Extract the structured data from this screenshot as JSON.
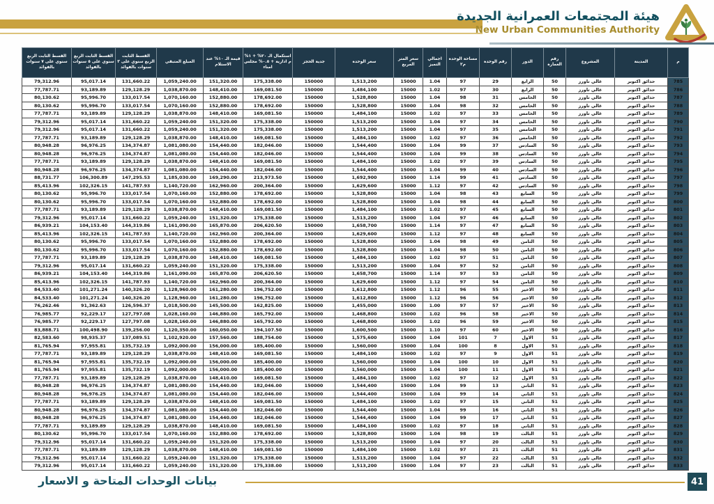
{
  "header": {
    "title_ar": "هيئة المجتمعات العمرانية الجديدة",
    "title_en": "New Urban Communities Authority",
    "logo_icon": "pyramid-plant-logo"
  },
  "footer": {
    "title": "بيانات الوحدات المتاحة و الاسعار",
    "page_number": "41"
  },
  "colors": {
    "gold": "#c9a23f",
    "header_teal": "#20394a",
    "serial_cell_teal": "#2e4f61",
    "building_no_red": "#d92b1f",
    "title_teal": "#12505f",
    "title_gold": "#a88d2e",
    "footer_teal": "#1b5564"
  },
  "table": {
    "columns": [
      {
        "id": "serial",
        "label": "م"
      },
      {
        "id": "city",
        "label": "المدينة"
      },
      {
        "id": "project",
        "label": "المشروع"
      },
      {
        "id": "building_no",
        "label": "رقم العمارة"
      },
      {
        "id": "floor",
        "label": "الدور"
      },
      {
        "id": "unit_no",
        "label": "رقم الوحدة"
      },
      {
        "id": "unit_area",
        "label": "مساحة الوحدة م٢"
      },
      {
        "id": "total_premium",
        "label": "اجمالي التميز"
      },
      {
        "id": "price_per_m2",
        "label": "سعر المتر المربع"
      },
      {
        "id": "unit_price",
        "label": "سعر الوحدة"
      },
      {
        "id": "booking_deposit",
        "label": "جدية الحجز"
      },
      {
        "id": "completion_20pct",
        "label": "استكمال الـ ٢٠% + ١% م ادارية + ٠.٥% مجلس امناء"
      },
      {
        "id": "value_10pct_on_delivery",
        "label": "قيمة الـ ١٠% عند الاستلام"
      },
      {
        "id": "remaining_amount",
        "label": "المبلغ المتبقي"
      },
      {
        "id": "installment_3y",
        "label": "القسط الثابت الربع سنوي على ٣ سنوات بالفوائد"
      },
      {
        "id": "installment_5y",
        "label": "القسط الثابت الربع سنوي على ٥ سنوات بالفوائد"
      },
      {
        "id": "installment_7y",
        "label": "القسط الثابت الربع سنوي على ٧ سنوات بالفوائد"
      }
    ],
    "rows": [
      [
        "785",
        "حدائق اكتوبر",
        "غالي تاورز",
        "50",
        "الرابع",
        "29",
        "97",
        "1.04",
        "15000",
        "1,513,200",
        "150000",
        "175,338.00",
        "151,320.00",
        "1,059,240.00",
        "131,660.22",
        "95,017.14",
        "79,312.96"
      ],
      [
        "786",
        "حدائق اكتوبر",
        "غالي تاورز",
        "50",
        "الرابع",
        "30",
        "97",
        "1.02",
        "15000",
        "1,484,100",
        "150000",
        "169,081.50",
        "148,410.00",
        "1,038,870.00",
        "129,128.29",
        "93,189.89",
        "77,787.71"
      ],
      [
        "787",
        "حدائق اكتوبر",
        "غالي تاورز",
        "50",
        "الخامس",
        "31",
        "98",
        "1.04",
        "15000",
        "1,528,800",
        "150000",
        "178,692.00",
        "152,880.00",
        "1,070,160.00",
        "133,017.54",
        "95,996.70",
        "80,130.62"
      ],
      [
        "788",
        "حدائق اكتوبر",
        "غالي تاورز",
        "50",
        "الخامس",
        "32",
        "98",
        "1.04",
        "15000",
        "1,528,800",
        "150000",
        "178,692.00",
        "152,880.00",
        "1,070,160.00",
        "133,017.54",
        "95,996.70",
        "80,130.62"
      ],
      [
        "789",
        "حدائق اكتوبر",
        "غالي تاورز",
        "50",
        "الخامس",
        "33",
        "97",
        "1.02",
        "15000",
        "1,484,100",
        "150000",
        "169,081.50",
        "148,410.00",
        "1,038,870.00",
        "129,128.29",
        "93,189.89",
        "77,787.71"
      ],
      [
        "790",
        "حدائق اكتوبر",
        "غالي تاورز",
        "50",
        "الخامس",
        "34",
        "97",
        "1.04",
        "15000",
        "1,513,200",
        "150000",
        "175,338.00",
        "151,320.00",
        "1,059,240.00",
        "131,660.22",
        "95,017.14",
        "79,312.96"
      ],
      [
        "791",
        "حدائق اكتوبر",
        "غالي تاورز",
        "50",
        "الخامس",
        "35",
        "97",
        "1.04",
        "15000",
        "1,513,200",
        "150000",
        "175,338.00",
        "151,320.00",
        "1,059,240.00",
        "131,660.22",
        "95,017.14",
        "79,312.96"
      ],
      [
        "792",
        "حدائق اكتوبر",
        "غالي تاورز",
        "50",
        "الخامس",
        "36",
        "97",
        "1.02",
        "15000",
        "1,484,100",
        "150000",
        "169,081.50",
        "148,410.00",
        "1,038,870.00",
        "129,128.29",
        "93,189.89",
        "77,787.71"
      ],
      [
        "793",
        "حدائق اكتوبر",
        "غالي تاورز",
        "50",
        "السادس",
        "37",
        "99",
        "1.04",
        "15000",
        "1,544,400",
        "150000",
        "182,046.00",
        "154,440.00",
        "1,081,080.00",
        "134,374.87",
        "96,976.25",
        "80,948.28"
      ],
      [
        "794",
        "حدائق اكتوبر",
        "غالي تاورز",
        "50",
        "السادس",
        "38",
        "99",
        "1.04",
        "15000",
        "1,544,400",
        "150000",
        "182,046.00",
        "154,440.00",
        "1,081,080.00",
        "134,374.87",
        "96,976.25",
        "80,948.28"
      ],
      [
        "795",
        "حدائق اكتوبر",
        "غالي تاورز",
        "50",
        "السادس",
        "39",
        "97",
        "1.02",
        "15000",
        "1,484,100",
        "150000",
        "169,081.50",
        "148,410.00",
        "1,038,870.00",
        "129,128.29",
        "93,189.89",
        "77,787.71"
      ],
      [
        "796",
        "حدائق اكتوبر",
        "غالي تاورز",
        "50",
        "السادس",
        "40",
        "99",
        "1.04",
        "15000",
        "1,544,400",
        "150000",
        "182,046.00",
        "154,440.00",
        "1,081,080.00",
        "134,374.87",
        "96,976.25",
        "80,948.28"
      ],
      [
        "797",
        "حدائق اكتوبر",
        "غالي تاورز",
        "50",
        "السادس",
        "41",
        "99",
        "1.14",
        "15000",
        "1,692,900",
        "150000",
        "213,973.50",
        "169,290.00",
        "1,185,030.00",
        "147,295.53",
        "106,300.89",
        "88,731.77"
      ],
      [
        "798",
        "حدائق اكتوبر",
        "غالي تاورز",
        "50",
        "السادس",
        "42",
        "97",
        "1.12",
        "15000",
        "1,629,600",
        "150000",
        "200,364.00",
        "162,960.00",
        "1,140,720.00",
        "141,787.93",
        "102,326.15",
        "85,413.96"
      ],
      [
        "799",
        "حدائق اكتوبر",
        "غالي تاورز",
        "50",
        "السابع",
        "43",
        "98",
        "1.04",
        "15000",
        "1,528,800",
        "150000",
        "178,692.00",
        "152,880.00",
        "1,070,160.00",
        "133,017.54",
        "95,996.70",
        "80,130.62"
      ],
      [
        "800",
        "حدائق اكتوبر",
        "غالي تاورز",
        "50",
        "السابع",
        "44",
        "98",
        "1.04",
        "15000",
        "1,528,800",
        "150000",
        "178,692.00",
        "152,880.00",
        "1,070,160.00",
        "133,017.54",
        "95,996.70",
        "80,130.62"
      ],
      [
        "801",
        "حدائق اكتوبر",
        "غالي تاورز",
        "50",
        "السابع",
        "45",
        "97",
        "1.02",
        "15000",
        "1,484,100",
        "150000",
        "169,081.50",
        "148,410.00",
        "1,038,870.00",
        "129,128.29",
        "93,189.89",
        "77,787.71"
      ],
      [
        "802",
        "حدائق اكتوبر",
        "غالي تاورز",
        "50",
        "السابع",
        "46",
        "97",
        "1.04",
        "15000",
        "1,513,200",
        "150000",
        "175,338.00",
        "151,320.00",
        "1,059,240.00",
        "131,660.22",
        "95,017.14",
        "79,312.96"
      ],
      [
        "803",
        "حدائق اكتوبر",
        "غالي تاورز",
        "50",
        "السابع",
        "47",
        "97",
        "1.14",
        "15000",
        "1,658,700",
        "150000",
        "206,620.50",
        "165,870.00",
        "1,161,090.00",
        "144,319.86",
        "104,153.40",
        "86,939.21"
      ],
      [
        "804",
        "حدائق اكتوبر",
        "غالي تاورز",
        "50",
        "السابع",
        "48",
        "97",
        "1.12",
        "15000",
        "1,629,600",
        "150000",
        "200,364.00",
        "162,960.00",
        "1,140,720.00",
        "141,787.93",
        "102,326.15",
        "85,413.96"
      ],
      [
        "805",
        "حدائق اكتوبر",
        "غالي تاورز",
        "50",
        "الثامن",
        "49",
        "98",
        "1.04",
        "15000",
        "1,528,800",
        "150000",
        "178,692.00",
        "152,880.00",
        "1,070,160.00",
        "133,017.54",
        "95,996.70",
        "80,130.62"
      ],
      [
        "806",
        "حدائق اكتوبر",
        "غالي تاورز",
        "50",
        "الثامن",
        "50",
        "98",
        "1.04",
        "15000",
        "1,528,800",
        "150000",
        "178,692.00",
        "152,880.00",
        "1,070,160.00",
        "133,017.54",
        "95,996.70",
        "80,130.62"
      ],
      [
        "807",
        "حدائق اكتوبر",
        "غالي تاورز",
        "50",
        "الثامن",
        "51",
        "97",
        "1.02",
        "15000",
        "1,484,100",
        "150000",
        "169,081.50",
        "148,410.00",
        "1,038,870.00",
        "129,128.29",
        "93,189.89",
        "77,787.71"
      ],
      [
        "808",
        "حدائق اكتوبر",
        "غالي تاورز",
        "50",
        "الثامن",
        "52",
        "97",
        "1.04",
        "15000",
        "1,513,200",
        "150000",
        "175,338.00",
        "151,320.00",
        "1,059,240.00",
        "131,660.22",
        "95,017.14",
        "79,312.96"
      ],
      [
        "809",
        "حدائق اكتوبر",
        "غالي تاورز",
        "50",
        "الثامن",
        "53",
        "97",
        "1.14",
        "15000",
        "1,658,700",
        "150000",
        "206,620.50",
        "165,870.00",
        "1,161,090.00",
        "144,319.86",
        "104,153.40",
        "86,939.21"
      ],
      [
        "810",
        "حدائق اكتوبر",
        "غالي تاورز",
        "50",
        "الثامن",
        "54",
        "97",
        "1.12",
        "15000",
        "1,629,600",
        "150000",
        "200,364.00",
        "162,960.00",
        "1,140,720.00",
        "141,787.93",
        "102,326.15",
        "85,413.96"
      ],
      [
        "811",
        "حدائق اكتوبر",
        "غالي تاورز",
        "50",
        "الاخير",
        "55",
        "96",
        "1.12",
        "15000",
        "1,612,800",
        "150000",
        "196,752.00",
        "161,280.00",
        "1,128,960.00",
        "140,326.20",
        "101,271.24",
        "84,533.40"
      ],
      [
        "812",
        "حدائق اكتوبر",
        "غالي تاورز",
        "50",
        "الاخير",
        "56",
        "96",
        "1.12",
        "15000",
        "1,612,800",
        "150000",
        "196,752.00",
        "161,280.00",
        "1,128,960.00",
        "140,326.20",
        "101,271.24",
        "84,533.40"
      ],
      [
        "813",
        "حدائق اكتوبر",
        "غالي تاورز",
        "50",
        "الاخير",
        "57",
        "97",
        "1.00",
        "15000",
        "1,455,000",
        "150000",
        "162,825.00",
        "145,500.00",
        "1,018,500.00",
        "126,596.37",
        "91,362.63",
        "76,262.46"
      ],
      [
        "814",
        "حدائق اكتوبر",
        "غالي تاورز",
        "50",
        "الاخير",
        "58",
        "96",
        "1.02",
        "15000",
        "1,468,800",
        "150000",
        "165,792.00",
        "146,880.00",
        "1,028,160.00",
        "127,797.08",
        "92,229.17",
        "76,985.77"
      ],
      [
        "815",
        "حدائق اكتوبر",
        "غالي تاورز",
        "50",
        "الاخير",
        "59",
        "96",
        "1.02",
        "15000",
        "1,468,800",
        "150000",
        "165,792.00",
        "146,880.00",
        "1,028,160.00",
        "127,797.08",
        "92,229.17",
        "76,985.77"
      ],
      [
        "816",
        "حدائق اكتوبر",
        "غالي تاورز",
        "50",
        "الاخير",
        "60",
        "97",
        "1.10",
        "15000",
        "1,600,500",
        "150000",
        "194,107.50",
        "160,050.00",
        "1,120,350.00",
        "139,256.00",
        "100,498.90",
        "83,888.71"
      ],
      [
        "817",
        "حدائق اكتوبر",
        "غالي تاورز",
        "51",
        "الاول",
        "7",
        "101",
        "1.04",
        "15000",
        "1,575,600",
        "150000",
        "188,754.00",
        "157,560.00",
        "1,102,920.00",
        "137,089.51",
        "98,935.37",
        "82,583.60"
      ],
      [
        "818",
        "حدائق اكتوبر",
        "غالي تاورز",
        "51",
        "الاول",
        "8",
        "100",
        "1.04",
        "15000",
        "1,560,000",
        "150000",
        "185,400.00",
        "156,000.00",
        "1,092,000.00",
        "135,732.19",
        "97,955.81",
        "81,765.94"
      ],
      [
        "819",
        "حدائق اكتوبر",
        "غالي تاورز",
        "51",
        "الاول",
        "9",
        "97",
        "1.02",
        "15000",
        "1,484,100",
        "150000",
        "169,081.50",
        "148,410.00",
        "1,038,870.00",
        "129,128.29",
        "93,189.89",
        "77,787.71"
      ],
      [
        "820",
        "حدائق اكتوبر",
        "غالي تاورز",
        "51",
        "الاول",
        "10",
        "100",
        "1.04",
        "15000",
        "1,560,000",
        "150000",
        "185,400.00",
        "156,000.00",
        "1,092,000.00",
        "135,732.19",
        "97,955.81",
        "81,765.94"
      ],
      [
        "821",
        "حدائق اكتوبر",
        "غالي تاورز",
        "51",
        "الاول",
        "11",
        "100",
        "1.04",
        "15000",
        "1,560,000",
        "150000",
        "185,400.00",
        "156,000.00",
        "1,092,000.00",
        "135,732.19",
        "97,955.81",
        "81,765.94"
      ],
      [
        "822",
        "حدائق اكتوبر",
        "غالي تاورز",
        "51",
        "الاول",
        "12",
        "97",
        "1.02",
        "15000",
        "1,484,100",
        "150000",
        "169,081.50",
        "148,410.00",
        "1,038,870.00",
        "129,128.29",
        "93,189.89",
        "77,787.71"
      ],
      [
        "823",
        "حدائق اكتوبر",
        "غالي تاورز",
        "51",
        "الثاني",
        "13",
        "99",
        "1.04",
        "15000",
        "1,544,400",
        "150000",
        "182,046.00",
        "154,440.00",
        "1,081,080.00",
        "134,374.87",
        "96,976.25",
        "80,948.28"
      ],
      [
        "824",
        "حدائق اكتوبر",
        "غالي تاورز",
        "51",
        "الثاني",
        "14",
        "99",
        "1.04",
        "15000",
        "1,544,400",
        "150000",
        "182,046.00",
        "154,440.00",
        "1,081,080.00",
        "134,374.87",
        "96,976.25",
        "80,948.28"
      ],
      [
        "825",
        "حدائق اكتوبر",
        "غالي تاورز",
        "51",
        "الثاني",
        "15",
        "97",
        "1.02",
        "15000",
        "1,484,100",
        "150000",
        "169,081.50",
        "148,410.00",
        "1,038,870.00",
        "129,128.29",
        "93,189.89",
        "77,787.71"
      ],
      [
        "826",
        "حدائق اكتوبر",
        "غالي تاورز",
        "51",
        "الثاني",
        "16",
        "99",
        "1.04",
        "15000",
        "1,544,400",
        "150000",
        "182,046.00",
        "154,440.00",
        "1,081,080.00",
        "134,374.87",
        "96,976.25",
        "80,948.28"
      ],
      [
        "827",
        "حدائق اكتوبر",
        "غالي تاورز",
        "51",
        "الثاني",
        "17",
        "99",
        "1.04",
        "15000",
        "1,544,400",
        "150000",
        "182,046.00",
        "154,440.00",
        "1,081,080.00",
        "134,374.87",
        "96,976.25",
        "80,948.28"
      ],
      [
        "828",
        "حدائق اكتوبر",
        "غالي تاورز",
        "51",
        "الثاني",
        "18",
        "97",
        "1.02",
        "15000",
        "1,484,100",
        "150000",
        "169,081.50",
        "148,410.00",
        "1,038,870.00",
        "129,128.29",
        "93,189.89",
        "77,787.71"
      ],
      [
        "829",
        "حدائق اكتوبر",
        "غالي تاورز",
        "51",
        "الثالث",
        "19",
        "98",
        "1.04",
        "15000",
        "1,528,800",
        "150000",
        "178,692.00",
        "152,880.00",
        "1,070,160.00",
        "133,017.54",
        "95,996.70",
        "80,130.62"
      ],
      [
        "830",
        "حدائق اكتوبر",
        "غالي تاورز",
        "51",
        "الثالث",
        "20",
        "97",
        "1.04",
        "15000",
        "1,513,200",
        "150000",
        "175,338.00",
        "151,320.00",
        "1,059,240.00",
        "131,660.22",
        "95,017.14",
        "79,312.96"
      ],
      [
        "831",
        "حدائق اكتوبر",
        "غالي تاورز",
        "51",
        "الثالث",
        "21",
        "97",
        "1.02",
        "15000",
        "1,484,100",
        "150000",
        "169,081.50",
        "148,410.00",
        "1,038,870.00",
        "129,128.29",
        "93,189.89",
        "77,787.71"
      ],
      [
        "832",
        "حدائق اكتوبر",
        "غالي تاورز",
        "51",
        "الثالث",
        "22",
        "97",
        "1.04",
        "15000",
        "1,513,200",
        "150000",
        "175,338.00",
        "151,320.00",
        "1,059,240.00",
        "131,660.22",
        "95,017.14",
        "79,312.96"
      ],
      [
        "833",
        "حدائق اكتوبر",
        "غالي تاورز",
        "51",
        "الثالث",
        "23",
        "97",
        "1.04",
        "15000",
        "1,513,200",
        "150000",
        "175,338.00",
        "151,320.00",
        "1,059,240.00",
        "131,660.22",
        "95,017.14",
        "79,312.96"
      ]
    ]
  }
}
